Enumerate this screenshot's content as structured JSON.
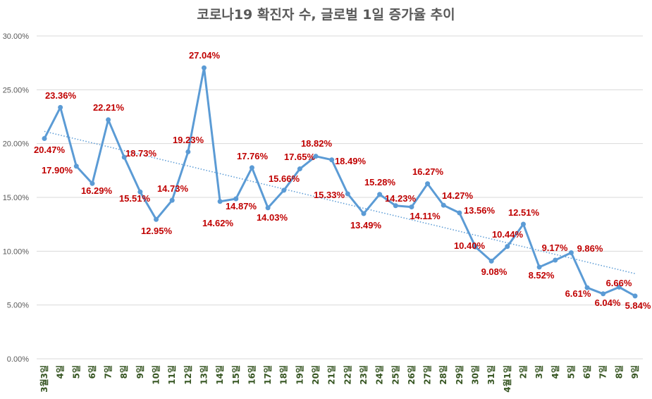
{
  "chart_data": {
    "type": "line",
    "title": "코로나19 확진자 수, 글로벌 1일 증가율 추이",
    "xlabel": "",
    "ylabel": "",
    "ylim": [
      0,
      30
    ],
    "yticks": [
      "0.00%",
      "5.00%",
      "10.00%",
      "15.00%",
      "20.00%",
      "25.00%",
      "30.00%"
    ],
    "grid": true,
    "trendline": "linear",
    "colors": {
      "line": "#5b9bd5",
      "label": "#c00000",
      "xtick": "#375623",
      "grid": "#d9d9d9"
    },
    "categories": [
      "3월3일",
      "4일",
      "5일",
      "6일",
      "7일",
      "8일",
      "9일",
      "10일",
      "11일",
      "12일",
      "13일",
      "14일",
      "15일",
      "16일",
      "17일",
      "18일",
      "19일",
      "20일",
      "21일",
      "22일",
      "23일",
      "24일",
      "25일",
      "26일",
      "27일",
      "28일",
      "29일",
      "30일",
      "31일",
      "4월1일",
      "2일",
      "3일",
      "4일",
      "5일",
      "6일",
      "7일",
      "8일",
      "9일"
    ],
    "values": [
      20.47,
      23.36,
      17.9,
      16.29,
      22.21,
      18.73,
      15.51,
      12.95,
      14.73,
      19.23,
      27.04,
      14.62,
      14.87,
      17.76,
      14.03,
      15.66,
      17.65,
      18.82,
      18.49,
      15.33,
      13.49,
      15.28,
      14.23,
      14.11,
      16.27,
      14.27,
      13.56,
      10.4,
      9.08,
      10.44,
      12.51,
      8.52,
      9.17,
      9.86,
      6.61,
      6.04,
      6.66,
      5.84
    ],
    "data_labels": [
      "20.47%",
      "23.36%",
      "17.90%",
      "16.29%",
      "22.21%",
      "18.73%",
      "15.51%",
      "12.95%",
      "14.73%",
      "19.23%",
      "27.04%",
      "14.62%",
      "14.87%",
      "17.76%",
      "14.03%",
      "15.66%",
      "17.65%",
      "18.82%",
      "18.49%",
      "15.33%",
      "13.49%",
      "15.28%",
      "14.23%",
      "14.11%",
      "16.27%",
      "14.27%",
      "13.56%",
      "10.40%",
      "9.08%",
      "10.44%",
      "12.51%",
      "8.52%",
      "9.17%",
      "9.86%",
      "6.61%",
      "6.04%",
      "6.66%",
      "5.84%"
    ]
  }
}
